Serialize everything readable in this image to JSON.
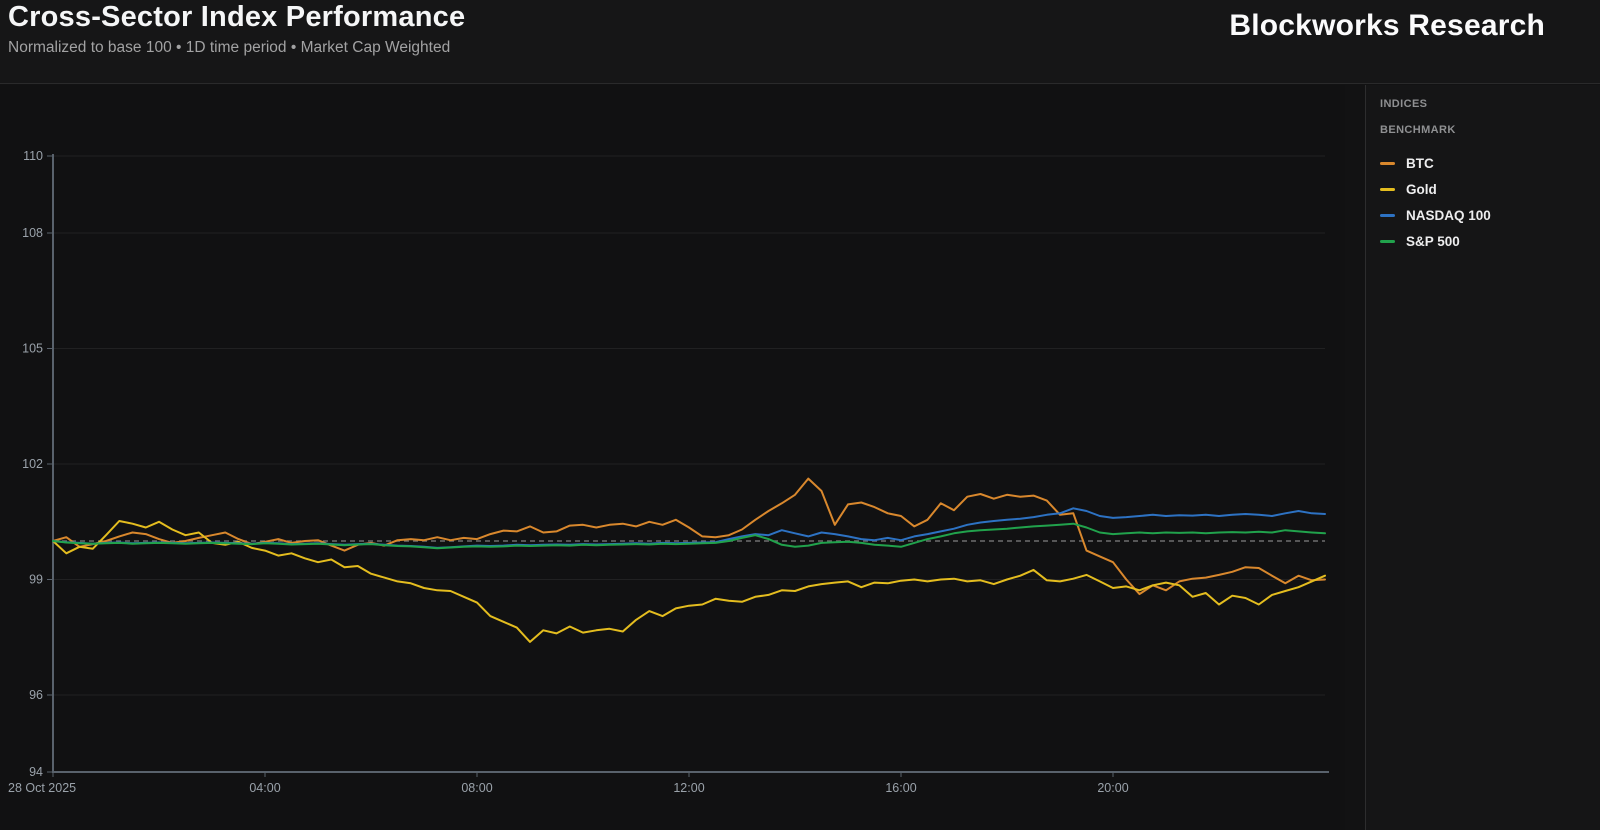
{
  "header": {
    "title": "Cross-Sector Index Performance",
    "subtitle": "Normalized to base 100 • 1D time period • Market Cap Weighted",
    "brand": "Blockworks Research"
  },
  "legend": {
    "heading_indices": "INDICES",
    "heading_benchmark": "BENCHMARK",
    "items": [
      {
        "id": "btc",
        "label": "BTC",
        "color": "#d9882d"
      },
      {
        "id": "gold",
        "label": "Gold",
        "color": "#e4bd1f"
      },
      {
        "id": "nasdaq",
        "label": "NASDAQ 100",
        "color": "#2d72c3"
      },
      {
        "id": "sp500",
        "label": "S&P 500",
        "color": "#21a24c"
      }
    ]
  },
  "chart_data": {
    "type": "line",
    "title": "Cross-Sector Index Performance",
    "xlabel": "",
    "ylabel": "",
    "grid": true,
    "legend_position": "right-panel",
    "ylim": [
      94,
      110
    ],
    "yticks": [
      110,
      108,
      105,
      102,
      99,
      96,
      94
    ],
    "baseline": {
      "value": 100,
      "style": "dashed",
      "color": "#6e6e6e"
    },
    "x_unit": "hours",
    "x_range": [
      0,
      24
    ],
    "x_step_hours": 0.25,
    "xticks": [
      {
        "hours": 0,
        "label": "28 Oct 2025"
      },
      {
        "hours": 4,
        "label": "04:00"
      },
      {
        "hours": 8,
        "label": "08:00"
      },
      {
        "hours": 12,
        "label": "12:00"
      },
      {
        "hours": 16,
        "label": "16:00"
      },
      {
        "hours": 20,
        "label": "20:00"
      }
    ],
    "series": [
      {
        "name": "BTC",
        "color": "#d9882d",
        "values": [
          100.0,
          100.1,
          99.85,
          99.92,
          100.0,
          100.12,
          100.22,
          100.18,
          100.05,
          99.95,
          100.0,
          100.08,
          100.15,
          100.22,
          100.05,
          99.92,
          99.98,
          100.05,
          99.95,
          100.0,
          100.02,
          99.88,
          99.75,
          99.9,
          99.95,
          99.88,
          100.02,
          100.05,
          100.02,
          100.1,
          100.02,
          100.08,
          100.05,
          100.18,
          100.27,
          100.25,
          100.38,
          100.22,
          100.25,
          100.4,
          100.42,
          100.35,
          100.42,
          100.45,
          100.38,
          100.5,
          100.42,
          100.55,
          100.35,
          100.12,
          100.1,
          100.15,
          100.3,
          100.55,
          100.78,
          100.98,
          101.2,
          101.62,
          101.3,
          100.42,
          100.95,
          101.0,
          100.88,
          100.72,
          100.65,
          100.38,
          100.55,
          100.98,
          100.8,
          101.15,
          101.22,
          101.1,
          101.2,
          101.15,
          101.18,
          101.05,
          100.68,
          100.72,
          99.75,
          99.6,
          99.45,
          99.0,
          98.62,
          98.85,
          98.72,
          98.95,
          99.02,
          99.05,
          99.12,
          99.2,
          99.32,
          99.3,
          99.1,
          98.9,
          99.1,
          98.98,
          99.0
        ]
      },
      {
        "name": "Gold",
        "color": "#e4bd1f",
        "values": [
          100.0,
          99.68,
          99.85,
          99.8,
          100.15,
          100.52,
          100.45,
          100.35,
          100.5,
          100.3,
          100.15,
          100.22,
          99.95,
          99.9,
          99.98,
          99.82,
          99.75,
          99.62,
          99.68,
          99.55,
          99.45,
          99.52,
          99.32,
          99.35,
          99.15,
          99.05,
          98.95,
          98.9,
          98.78,
          98.72,
          98.7,
          98.55,
          98.4,
          98.05,
          97.9,
          97.75,
          97.38,
          97.68,
          97.6,
          97.78,
          97.62,
          97.68,
          97.72,
          97.65,
          97.95,
          98.18,
          98.05,
          98.25,
          98.32,
          98.35,
          98.5,
          98.45,
          98.42,
          98.55,
          98.6,
          98.72,
          98.7,
          98.82,
          98.88,
          98.92,
          98.95,
          98.8,
          98.92,
          98.9,
          98.97,
          99.0,
          98.95,
          99.0,
          99.02,
          98.95,
          98.98,
          98.88,
          99.0,
          99.1,
          99.25,
          98.98,
          98.95,
          99.02,
          99.12,
          98.95,
          98.78,
          98.82,
          98.72,
          98.85,
          98.92,
          98.85,
          98.55,
          98.65,
          98.35,
          98.58,
          98.52,
          98.35,
          98.6,
          98.7,
          98.8,
          98.95,
          99.1
        ]
      },
      {
        "name": "NASDAQ 100",
        "color": "#2d72c3",
        "values": [
          100.0,
          99.97,
          99.95,
          99.93,
          99.95,
          99.96,
          99.94,
          99.95,
          99.96,
          99.95,
          99.94,
          99.95,
          99.96,
          99.95,
          99.94,
          99.93,
          99.95,
          99.94,
          99.92,
          99.93,
          99.94,
          99.92,
          99.9,
          99.92,
          99.93,
          99.9,
          99.88,
          99.87,
          99.85,
          99.82,
          99.84,
          99.86,
          99.88,
          99.87,
          99.88,
          99.9,
          99.89,
          99.9,
          99.91,
          99.9,
          99.92,
          99.91,
          99.92,
          99.93,
          99.94,
          99.93,
          99.95,
          99.94,
          99.95,
          99.96,
          99.97,
          100.05,
          100.12,
          100.18,
          100.15,
          100.28,
          100.2,
          100.12,
          100.22,
          100.18,
          100.12,
          100.05,
          100.02,
          100.08,
          100.02,
          100.12,
          100.18,
          100.25,
          100.32,
          100.42,
          100.48,
          100.52,
          100.55,
          100.58,
          100.62,
          100.68,
          100.72,
          100.85,
          100.78,
          100.65,
          100.6,
          100.62,
          100.65,
          100.68,
          100.65,
          100.67,
          100.66,
          100.68,
          100.65,
          100.68,
          100.7,
          100.68,
          100.65,
          100.72,
          100.78,
          100.72,
          100.7
        ]
      },
      {
        "name": "S&P 500",
        "color": "#21a24c",
        "values": [
          100.0,
          99.96,
          99.94,
          99.93,
          99.94,
          99.95,
          99.93,
          99.94,
          99.95,
          99.94,
          99.93,
          99.94,
          99.95,
          99.94,
          99.93,
          99.92,
          99.94,
          99.93,
          99.91,
          99.92,
          99.93,
          99.91,
          99.89,
          99.91,
          99.92,
          99.89,
          99.87,
          99.86,
          99.84,
          99.81,
          99.83,
          99.85,
          99.86,
          99.85,
          99.86,
          99.88,
          99.87,
          99.88,
          99.89,
          99.88,
          99.9,
          99.89,
          99.9,
          99.91,
          99.92,
          99.91,
          99.93,
          99.92,
          99.93,
          99.94,
          99.95,
          100.0,
          100.08,
          100.15,
          100.05,
          99.9,
          99.85,
          99.88,
          99.95,
          99.97,
          99.98,
          99.95,
          99.9,
          99.88,
          99.85,
          99.95,
          100.05,
          100.12,
          100.2,
          100.25,
          100.28,
          100.3,
          100.32,
          100.35,
          100.38,
          100.4,
          100.42,
          100.45,
          100.35,
          100.22,
          100.18,
          100.2,
          100.22,
          100.2,
          100.22,
          100.21,
          100.22,
          100.2,
          100.22,
          100.23,
          100.22,
          100.24,
          100.22,
          100.28,
          100.25,
          100.22,
          100.2
        ]
      }
    ]
  }
}
